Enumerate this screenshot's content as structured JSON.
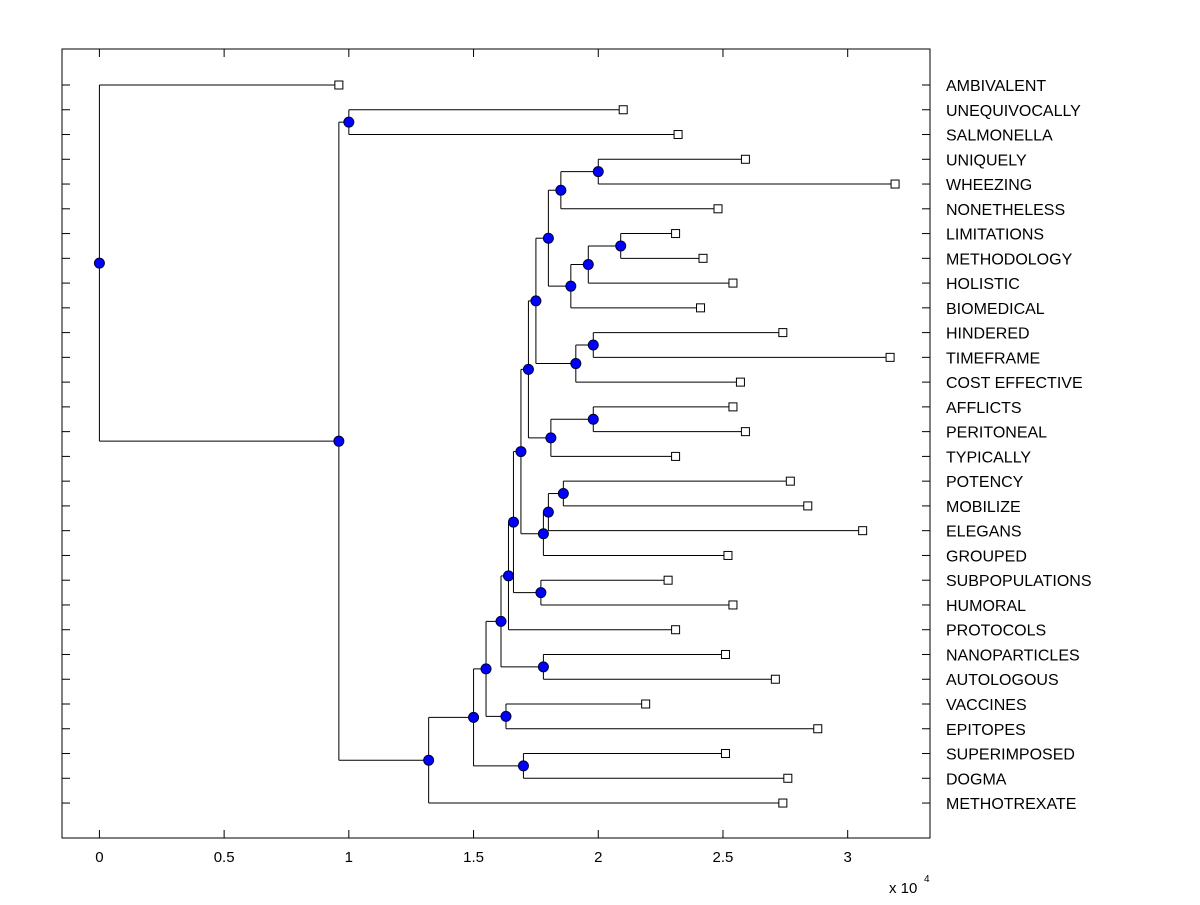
{
  "chart_data": {
    "type": "dendrogram",
    "xlim": [
      -0.15,
      3.33
    ],
    "x_ticks": [
      0,
      0.5,
      1,
      1.5,
      2,
      2.5,
      3
    ],
    "x_tick_labels": [
      "0",
      "0.5",
      "1",
      "1.5",
      "2",
      "2.5",
      "3"
    ],
    "x_scale_label": "x 10",
    "x_scale_exponent": "4",
    "grid": false,
    "leaves": [
      {
        "label": "AMBIVALENT",
        "x": 0.96
      },
      {
        "label": "UNEQUIVOCALLY",
        "x": 2.1
      },
      {
        "label": "SALMONELLA",
        "x": 2.32
      },
      {
        "label": "UNIQUELY",
        "x": 2.59
      },
      {
        "label": "WHEEZING",
        "x": 3.19
      },
      {
        "label": "NONETHELESS",
        "x": 2.48
      },
      {
        "label": "LIMITATIONS",
        "x": 2.31
      },
      {
        "label": "METHODOLOGY",
        "x": 2.42
      },
      {
        "label": "HOLISTIC",
        "x": 2.54
      },
      {
        "label": "BIOMEDICAL",
        "x": 2.41
      },
      {
        "label": "HINDERED",
        "x": 2.74
      },
      {
        "label": "TIMEFRAME",
        "x": 3.17
      },
      {
        "label": "COST EFFECTIVE",
        "x": 2.57
      },
      {
        "label": "AFFLICTS",
        "x": 2.54
      },
      {
        "label": "PERITONEAL",
        "x": 2.59
      },
      {
        "label": "TYPICALLY",
        "x": 2.31
      },
      {
        "label": "POTENCY",
        "x": 2.77
      },
      {
        "label": "MOBILIZE",
        "x": 2.84
      },
      {
        "label": "ELEGANS",
        "x": 3.06
      },
      {
        "label": "GROUPED",
        "x": 2.52
      },
      {
        "label": "SUBPOPULATIONS",
        "x": 2.28
      },
      {
        "label": "HUMORAL",
        "x": 2.54
      },
      {
        "label": "PROTOCOLS",
        "x": 2.31
      },
      {
        "label": "NANOPARTICLES",
        "x": 2.51
      },
      {
        "label": "AUTOLOGOUS",
        "x": 2.71
      },
      {
        "label": "VACCINES",
        "x": 2.19
      },
      {
        "label": "EPITOPES",
        "x": 2.88
      },
      {
        "label": "SUPERIMPOSED",
        "x": 2.51
      },
      {
        "label": "DOGMA",
        "x": 2.76
      },
      {
        "label": "METHOTREXATE",
        "x": 2.74
      }
    ],
    "nodes": [
      {
        "id": "n_root",
        "x": 0.0,
        "children": [
          "L0",
          "n_a"
        ]
      },
      {
        "id": "n_a",
        "x": 0.96,
        "children": [
          "n_b",
          "n_c"
        ]
      },
      {
        "id": "n_b",
        "x": 1.0,
        "children": [
          "L1",
          "L2"
        ]
      },
      {
        "id": "n_c",
        "x": 1.32,
        "children": [
          "n_d",
          "L29"
        ]
      },
      {
        "id": "n_d",
        "x": 1.5,
        "children": [
          "n_e",
          "n_dogma"
        ]
      },
      {
        "id": "n_dogma",
        "x": 1.7,
        "children": [
          "L27",
          "L28"
        ]
      },
      {
        "id": "n_e",
        "x": 1.55,
        "children": [
          "n_f",
          "n_vac"
        ]
      },
      {
        "id": "n_vac",
        "x": 1.63,
        "children": [
          "L25",
          "L26"
        ]
      },
      {
        "id": "n_f",
        "x": 1.61,
        "children": [
          "n_g",
          "n_nano"
        ]
      },
      {
        "id": "n_nano",
        "x": 1.78,
        "children": [
          "L23",
          "L24"
        ]
      },
      {
        "id": "n_g",
        "x": 1.64,
        "children": [
          "n_h",
          "L22"
        ]
      },
      {
        "id": "n_h",
        "x": 1.66,
        "children": [
          "n_i",
          "n_sub"
        ]
      },
      {
        "id": "n_sub",
        "x": 1.77,
        "children": [
          "L20",
          "L21"
        ]
      },
      {
        "id": "n_i",
        "x": 1.69,
        "children": [
          "n_j",
          "n_grp"
        ]
      },
      {
        "id": "n_grp",
        "x": 1.78,
        "children": [
          "n_mob",
          "L19"
        ]
      },
      {
        "id": "n_mob",
        "x": 1.8,
        "children": [
          "n_pot",
          "L18"
        ]
      },
      {
        "id": "n_pot",
        "x": 1.86,
        "children": [
          "L16",
          "L17"
        ]
      },
      {
        "id": "n_j",
        "x": 1.72,
        "children": [
          "n_k",
          "n_typ"
        ]
      },
      {
        "id": "n_typ",
        "x": 1.81,
        "children": [
          "n_aff",
          "L15"
        ]
      },
      {
        "id": "n_aff",
        "x": 1.98,
        "children": [
          "L13",
          "L14"
        ]
      },
      {
        "id": "n_k",
        "x": 1.75,
        "children": [
          "n_l",
          "n_cost"
        ]
      },
      {
        "id": "n_cost",
        "x": 1.91,
        "children": [
          "n_hin",
          "L12"
        ]
      },
      {
        "id": "n_hin",
        "x": 1.98,
        "children": [
          "L10",
          "L11"
        ]
      },
      {
        "id": "n_l",
        "x": 1.8,
        "children": [
          "n_m",
          "n_bio"
        ]
      },
      {
        "id": "n_m",
        "x": 1.85,
        "children": [
          "n_uni",
          "L5"
        ]
      },
      {
        "id": "n_uni",
        "x": 2.0,
        "children": [
          "L3",
          "L4"
        ]
      },
      {
        "id": "n_bio",
        "x": 1.89,
        "children": [
          "n_hol",
          "L9"
        ]
      },
      {
        "id": "n_hol",
        "x": 1.96,
        "children": [
          "n_lim",
          "L8"
        ]
      },
      {
        "id": "n_lim",
        "x": 2.09,
        "children": [
          "L6",
          "L7"
        ]
      }
    ]
  }
}
